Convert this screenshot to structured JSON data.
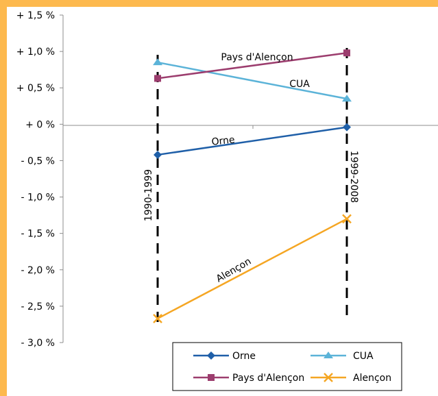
{
  "colors": {
    "frame": "#FDB94E",
    "background": "#FFFFFF",
    "axis": "#8C8C8C",
    "periodLine": "#000000"
  },
  "chart_data": {
    "type": "line",
    "title": "",
    "xlabel": "",
    "ylabel": "",
    "x": [
      "1990-1999",
      "1999-2008"
    ],
    "ylim": [
      -3.0,
      1.5
    ],
    "ytick_values": [
      1.5,
      1.0,
      0.5,
      0.0,
      -0.5,
      -1.0,
      -1.5,
      -2.0,
      -2.5,
      -3.0
    ],
    "ytick_labels": [
      "+ 1,5 %",
      "+ 1,0 %",
      "+ 0,5 %",
      "+ 0 %",
      "- 0,5 %",
      "- 1,0 %",
      "- 1,5 %",
      "- 2,0 %",
      "- 2,5 %",
      "- 3,0 %"
    ],
    "grid": false,
    "legend_position": "bottom-right",
    "series": [
      {
        "name": "Orne",
        "values": [
          -0.42,
          -0.04
        ],
        "color": "#1F5FA8",
        "marker": "diamond",
        "label": "Orne"
      },
      {
        "name": "CUA",
        "values": [
          0.85,
          0.35
        ],
        "color": "#5BB3D8",
        "marker": "triangle",
        "label": "CUA"
      },
      {
        "name": "Pays d'Alençon",
        "values": [
          0.63,
          0.98
        ],
        "color": "#9C3D6E",
        "marker": "square",
        "label": "Pays d'Alençon"
      },
      {
        "name": "Alençon",
        "values": [
          -2.67,
          -1.3
        ],
        "color": "#F5A623",
        "marker": "x",
        "label": "Alençon"
      }
    ],
    "period_labels": [
      "1990-1999",
      "1999-2008"
    ]
  }
}
